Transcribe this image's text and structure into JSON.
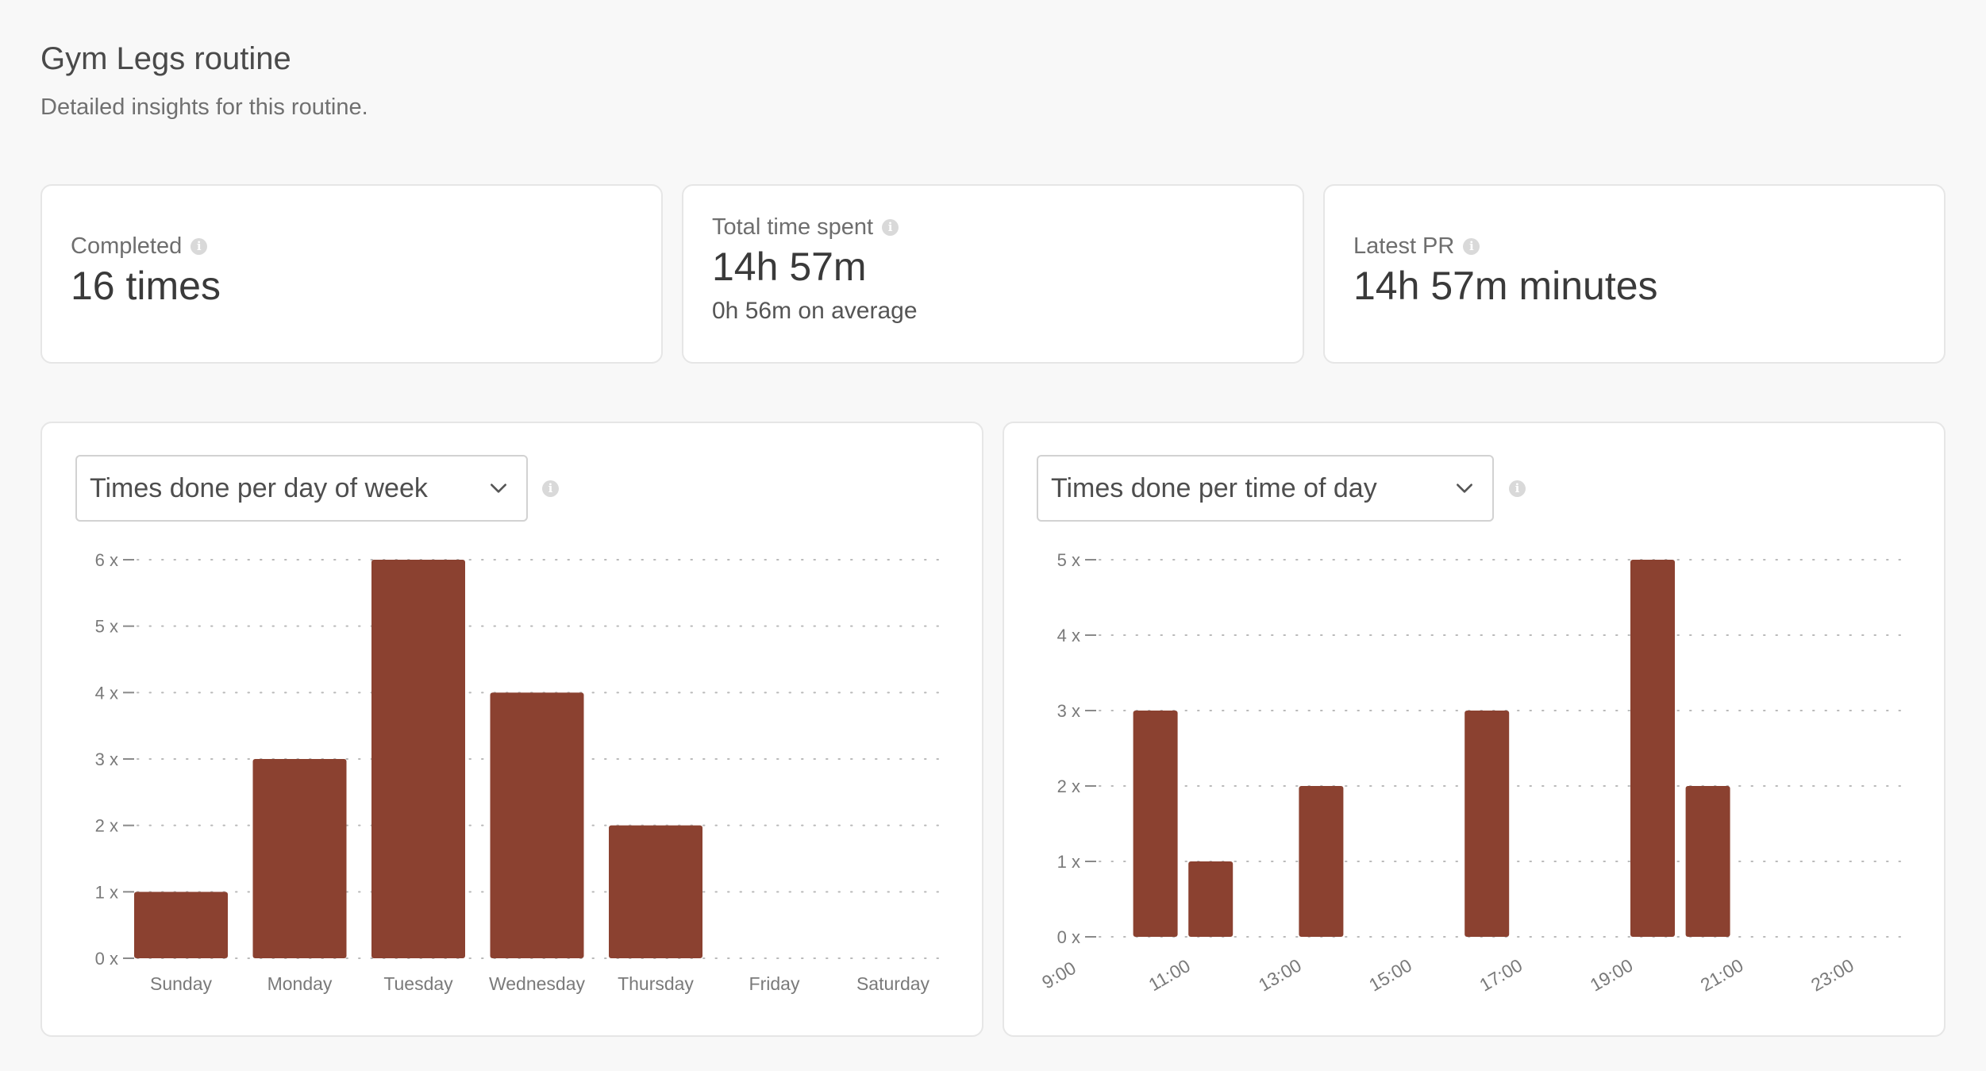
{
  "header": {
    "title": "Gym Legs routine",
    "subtitle": "Detailed insights for this routine."
  },
  "stats": {
    "completed": {
      "label": "Completed",
      "value": "16 times"
    },
    "total_time": {
      "label": "Total time spent",
      "value": "14h 57m",
      "sub": "0h 56m on average"
    },
    "latest_pr": {
      "label": "Latest PR",
      "value": "14h 57m minutes"
    }
  },
  "charts": {
    "day_of_week": {
      "dropdown_label": "Times done per day of week"
    },
    "time_of_day": {
      "dropdown_label": "Times done per time of day"
    }
  },
  "icons": {
    "info": "info-icon",
    "dropdown": "chevron-down-icon"
  },
  "colors": {
    "bar": "#8b4130",
    "accent_text": "#3a3a3a"
  },
  "chart_data": [
    {
      "type": "bar",
      "categories": [
        "Sunday",
        "Monday",
        "Tuesday",
        "Wednesday",
        "Thursday",
        "Friday",
        "Saturday"
      ],
      "values": [
        1,
        3,
        6,
        4,
        2,
        0,
        0
      ],
      "yticks": [
        "0 x",
        "1 x",
        "2 x",
        "3 x",
        "4 x",
        "5 x",
        "6 x"
      ],
      "ylim": [
        0,
        6
      ],
      "grid": true
    },
    {
      "type": "bar",
      "x": [
        "9:00",
        "10:00",
        "11:00",
        "12:00",
        "13:00",
        "14:00",
        "15:00",
        "16:00",
        "17:00",
        "18:00",
        "19:00",
        "20:00",
        "21:00",
        "22:00",
        "23:00"
      ],
      "values": [
        0,
        3,
        1,
        0,
        2,
        0,
        0,
        3,
        0,
        0,
        5,
        2,
        0,
        0,
        0
      ],
      "xticks": [
        "9:00",
        "11:00",
        "13:00",
        "15:00",
        "17:00",
        "19:00",
        "21:00",
        "23:00"
      ],
      "yticks": [
        "0 x",
        "1 x",
        "2 x",
        "3 x",
        "4 x",
        "5 x"
      ],
      "ylim": [
        0,
        5
      ],
      "grid": true
    }
  ]
}
